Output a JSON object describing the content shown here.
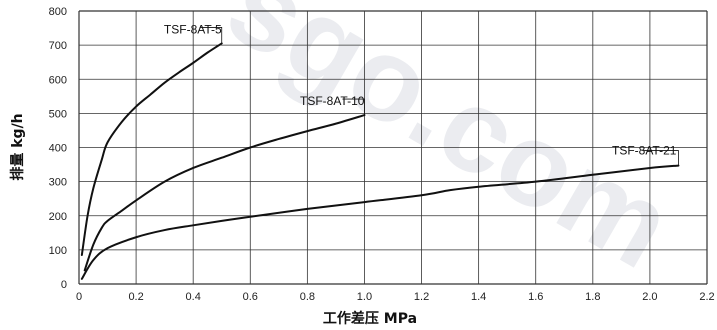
{
  "chart_data": {
    "type": "line",
    "xlabel": "工作差压 MPa",
    "ylabel": "排量 kg/h",
    "xlim": [
      0,
      2.2
    ],
    "ylim": [
      0,
      800
    ],
    "x_ticks": [
      0,
      0.2,
      0.4,
      0.6,
      0.8,
      1.0,
      1.2,
      1.4,
      1.6,
      1.8,
      2.0,
      2.2
    ],
    "x_tick_labels": [
      "0",
      "0.2",
      "0.4",
      "0.6",
      "0.8",
      "1.0",
      "1.2",
      "1.4",
      "1.6",
      "1.8",
      "2.0",
      "2.2"
    ],
    "y_ticks": [
      0,
      100,
      200,
      300,
      400,
      500,
      600,
      700,
      800
    ],
    "y_tick_labels": [
      "0",
      "100",
      "200",
      "300",
      "400",
      "500",
      "600",
      "700",
      "800"
    ],
    "grid": true,
    "watermark": "sgo.com",
    "series": [
      {
        "name": "TSF-8AT-5",
        "x": [
          0.01,
          0.03,
          0.05,
          0.08,
          0.1,
          0.15,
          0.2,
          0.25,
          0.3,
          0.35,
          0.4,
          0.45,
          0.5
        ],
        "y": [
          85,
          200,
          280,
          365,
          415,
          475,
          520,
          555,
          590,
          620,
          648,
          678,
          705
        ]
      },
      {
        "name": "TSF-8AT-10",
        "x": [
          0.02,
          0.05,
          0.08,
          0.1,
          0.15,
          0.2,
          0.3,
          0.4,
          0.5,
          0.6,
          0.7,
          0.8,
          0.9,
          1.0
        ],
        "y": [
          40,
          115,
          165,
          185,
          215,
          245,
          300,
          340,
          370,
          400,
          425,
          448,
          470,
          495
        ]
      },
      {
        "name": "TSF-8AT-21",
        "x": [
          0.01,
          0.05,
          0.1,
          0.2,
          0.3,
          0.4,
          0.5,
          0.6,
          0.8,
          1.0,
          1.2,
          1.3,
          1.4,
          1.6,
          1.8,
          2.0,
          2.1
        ],
        "y": [
          15,
          70,
          105,
          137,
          158,
          172,
          185,
          197,
          220,
          240,
          260,
          275,
          285,
          300,
          320,
          340,
          347
        ]
      }
    ],
    "line_color": "#111111",
    "grid_color": "#333333"
  }
}
